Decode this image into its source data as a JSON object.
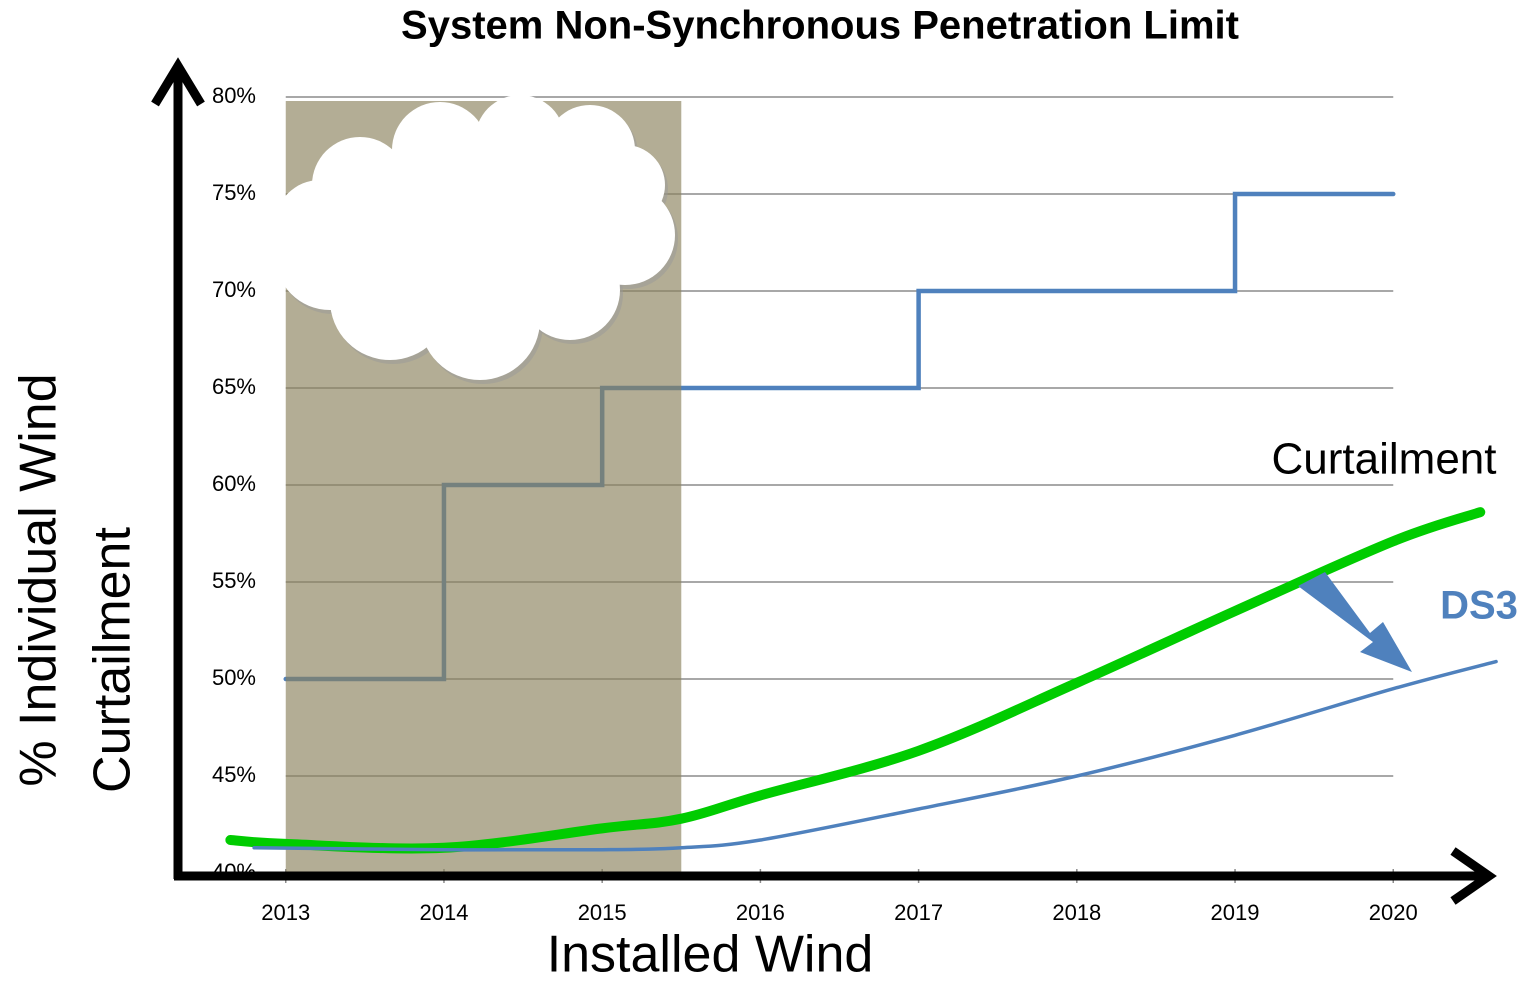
{
  "chart_data": {
    "type": "line",
    "title": "System Non-Synchronous Penetration Limit",
    "xlabel": "Installed Wind",
    "ylabel": [
      "% Individual Wind",
      "Curtailment"
    ],
    "xlim": [
      2012.3,
      2020.7
    ],
    "ylim": [
      40,
      80
    ],
    "xticks": [
      2013,
      2014,
      2015,
      2016,
      2017,
      2018,
      2019,
      2020
    ],
    "yticks": [
      {
        "value": 40,
        "label": "40%"
      },
      {
        "value": 45,
        "label": "45%"
      },
      {
        "value": 50,
        "label": "50%"
      },
      {
        "value": 55,
        "label": "55%"
      },
      {
        "value": 60,
        "label": "60%"
      },
      {
        "value": 65,
        "label": "65%"
      },
      {
        "value": 70,
        "label": "70%"
      },
      {
        "value": 75,
        "label": "75%"
      },
      {
        "value": 80,
        "label": "80%"
      }
    ],
    "grid": true,
    "shaded_span": {
      "x": [
        2013,
        2015.5
      ],
      "color": "#8a815c"
    },
    "series": [
      {
        "style": "step",
        "color": "#4f81bd",
        "x": [
          2013,
          2014,
          2014,
          2015,
          2015,
          2017,
          2017,
          2019,
          2019,
          2020
        ],
        "values": [
          50,
          50,
          60,
          60,
          65,
          65,
          70,
          70,
          75,
          75
        ]
      },
      {
        "style": "curve",
        "color": "#00cc00",
        "x": [
          2012.65,
          2013,
          2014,
          2015,
          2015.5,
          2016,
          2017,
          2018,
          2019,
          2020,
          2020.55
        ],
        "values": [
          41.7,
          41.5,
          41.3,
          42.3,
          42.8,
          44.0,
          46.3,
          49.8,
          53.5,
          57.1,
          58.6
        ]
      },
      {
        "style": "curve",
        "color": "#4f81bd",
        "x": [
          2012.8,
          2014,
          2015,
          2015.5,
          2016,
          2017,
          2018,
          2019,
          2020,
          2020.65
        ],
        "values": [
          41.3,
          41.2,
          41.2,
          41.3,
          41.7,
          43.3,
          45.0,
          47.1,
          49.5,
          50.9
        ]
      }
    ],
    "annotations": [
      {
        "text": "Curtailment"
      },
      {
        "text": "DS3"
      }
    ]
  }
}
